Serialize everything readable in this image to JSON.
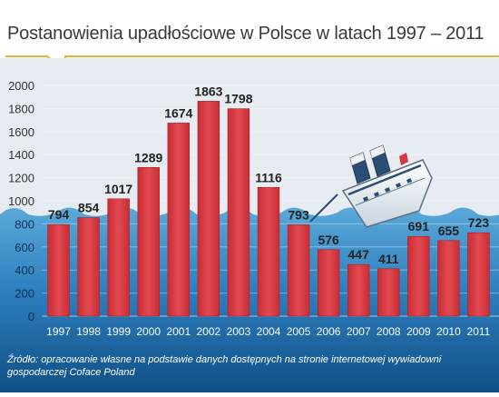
{
  "chart_data": {
    "type": "bar",
    "title": "Postanowienia upadłościowe w Polsce w latach 1997 – 2011",
    "categories": [
      "1997",
      "1998",
      "1999",
      "2000",
      "2001",
      "2002",
      "2003",
      "2004",
      "2005",
      "2006",
      "2007",
      "2008",
      "2009",
      "2010",
      "2011"
    ],
    "values": [
      794,
      854,
      1017,
      1289,
      1674,
      1863,
      1798,
      1116,
      793,
      576,
      447,
      411,
      691,
      655,
      723
    ],
    "y_ticks": [
      0,
      200,
      400,
      600,
      800,
      1000,
      1200,
      1400,
      1600,
      1800,
      2000
    ],
    "ylim": [
      0,
      2000
    ],
    "xlabel": "",
    "ylabel": "",
    "grid": true,
    "legend": "none",
    "colors": {
      "bar": "#d9363e",
      "bar_highlight": "#ee5a60",
      "sky": "#e6ecf1",
      "sea_top": "#5aa9d9",
      "sea_bottom": "#0f4f86",
      "gridline": "#c4ced8",
      "tick_label": "#333333",
      "value_label": "#222222"
    },
    "source": "Źródło: opracowanie własne na podstawie danych dostępnych na stronie internetowej wywiadowni gospodarczej Coface Poland",
    "illustration": "sinking-ship-icon"
  }
}
